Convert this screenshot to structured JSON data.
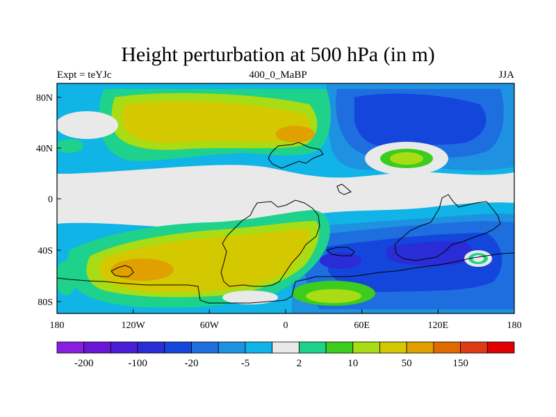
{
  "title": "Height perturbation at 500 hPa (in m)",
  "left_subtitle": "Expt = teYJc",
  "center_subtitle": "400_0_MaBP",
  "right_subtitle": "JJA",
  "axes": {
    "x_ticks": [
      "180",
      "120W",
      "60W",
      "0",
      "60E",
      "120E",
      "180"
    ],
    "y_ticks": [
      "80N",
      "40N",
      "0",
      "40S",
      "80S"
    ]
  },
  "colorbar": {
    "colors": [
      "#8a1ee0",
      "#6a16d6",
      "#4a1ed6",
      "#2a2cd6",
      "#1446dc",
      "#1e6ee0",
      "#1e92e0",
      "#10b4e6",
      "#e9e9e9",
      "#1ed28c",
      "#3ccc1e",
      "#a8dc14",
      "#d4c800",
      "#e0a000",
      "#e06a00",
      "#e03a14",
      "#e00000"
    ],
    "labels": [
      "-200",
      "-100",
      "-20",
      "-5",
      "2",
      "10",
      "50",
      "150"
    ]
  },
  "map_colors": {
    "neutral": "#e9e9e9",
    "blue_light": "#10b4e6",
    "blue_mid": "#1e92e0",
    "blue_strong": "#1e6ee0",
    "blue_deep": "#1446dc",
    "blue_darkest": "#2a2cd6",
    "green": "#1ed28c",
    "green_bright": "#3ccc1e",
    "yellow_green": "#a8dc14",
    "yellow": "#d4c800",
    "orange": "#e0a000"
  }
}
